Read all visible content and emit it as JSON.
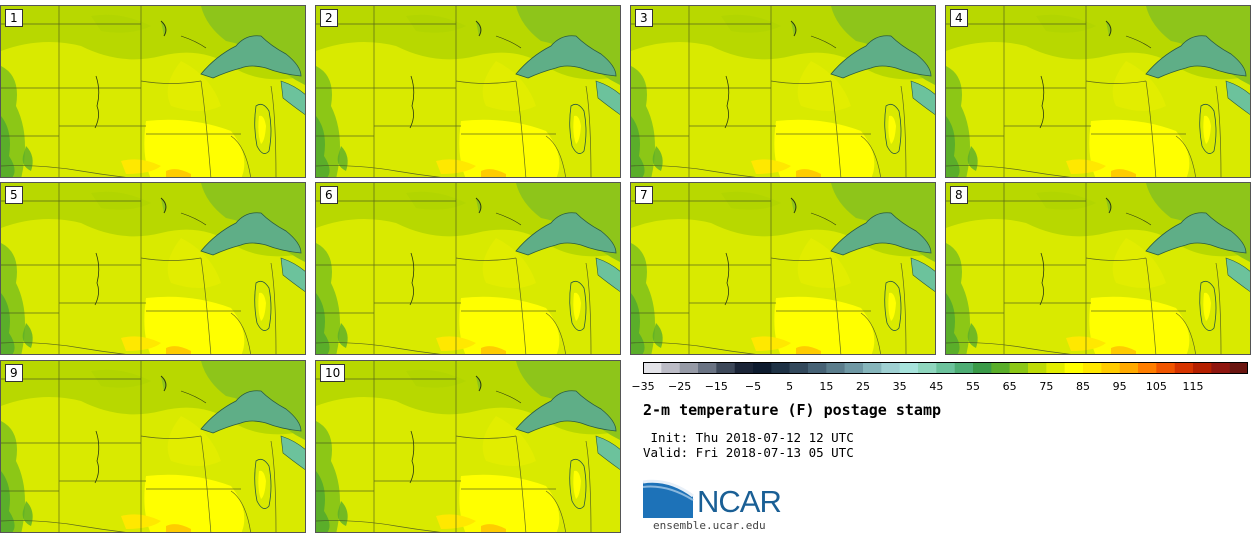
{
  "panels": [
    {
      "label": "1"
    },
    {
      "label": "2"
    },
    {
      "label": "3"
    },
    {
      "label": "4"
    },
    {
      "label": "5"
    },
    {
      "label": "6"
    },
    {
      "label": "7"
    },
    {
      "label": "8"
    },
    {
      "label": "9"
    },
    {
      "label": "10"
    }
  ],
  "colorbar": {
    "ticks": [
      "−35",
      "−25",
      "−15",
      "−5",
      "5",
      "15",
      "25",
      "35",
      "45",
      "55",
      "65",
      "75",
      "85",
      "95",
      "105",
      "115"
    ],
    "colors": [
      "#e3e3e8",
      "#bcbcc6",
      "#969aa6",
      "#6a7383",
      "#3d4859",
      "#1b2537",
      "#0d1b2e",
      "#1f3245",
      "#33495c",
      "#466275",
      "#5b7d8c",
      "#6f98a4",
      "#86b5bb",
      "#9fd0d2",
      "#a7e3dc",
      "#8fd6be",
      "#6cc29c",
      "#4ead74",
      "#3a9a48",
      "#5aae2a",
      "#8cc716",
      "#bedb06",
      "#e2ed00",
      "#ffff00",
      "#ffe800",
      "#ffcc00",
      "#ffaa00",
      "#ff7e00",
      "#f05500",
      "#d63400",
      "#b52000",
      "#8f1610",
      "#6a1510"
    ]
  },
  "title": "2-m temperature (F) postage stamp",
  "init": " Init: Thu 2018-07-12 12 UTC",
  "valid": "Valid: Fri 2018-07-13 05 UTC",
  "logo": {
    "text": "NCAR",
    "url": "ensemble.ucar.edu"
  }
}
